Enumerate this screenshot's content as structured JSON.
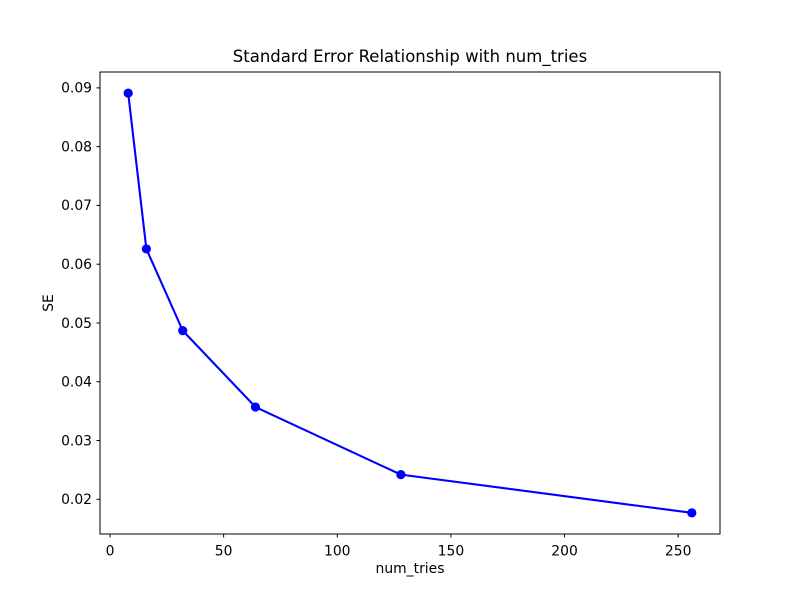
{
  "figure": {
    "background": "#ffffff",
    "axes_edge_color": "#000000"
  },
  "chart_data": {
    "type": "line",
    "title": "Standard Error Relationship with num_tries",
    "xlabel": "num_tries",
    "ylabel": "SE",
    "x": [
      8,
      16,
      32,
      64,
      128,
      256
    ],
    "y": [
      0.0891,
      0.0626,
      0.0487,
      0.0357,
      0.0242,
      0.0177
    ],
    "line_color": "#0000ff",
    "marker": "circle",
    "marker_color": "#0000ff",
    "xlim": [
      -4.4,
      268.4
    ],
    "ylim": [
      0.0141,
      0.0927
    ],
    "xticks": [
      0,
      50,
      100,
      150,
      200,
      250
    ],
    "xtick_labels": [
      "0",
      "50",
      "100",
      "150",
      "200",
      "250"
    ],
    "yticks": [
      0.02,
      0.03,
      0.04,
      0.05,
      0.06,
      0.07,
      0.08,
      0.09
    ],
    "ytick_labels": [
      "0.02",
      "0.03",
      "0.04",
      "0.05",
      "0.06",
      "0.07",
      "0.08",
      "0.09"
    ],
    "grid": false,
    "legend": null
  }
}
